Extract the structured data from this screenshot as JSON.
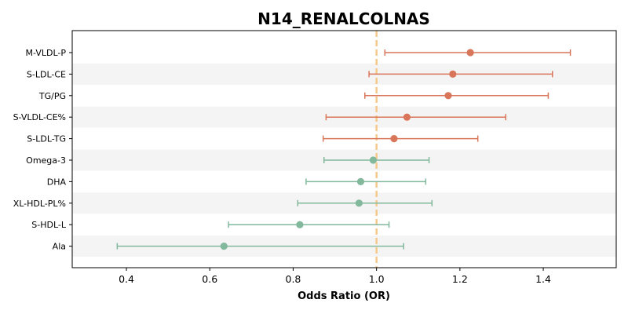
{
  "chart_data": {
    "type": "forest",
    "title": "N14_RENALCOLNAS",
    "xlabel": "Odds Ratio (OR)",
    "ylabel": "",
    "xlim": [
      0.27,
      1.575
    ],
    "xticks": [
      0.4,
      0.6,
      0.8,
      1.0,
      1.2,
      1.4
    ],
    "reference_line": 1.0,
    "colors": {
      "above": "#d9765a",
      "below": "#82b89c",
      "reference": "#f5c98a",
      "band": "#f4f4f4"
    },
    "items": [
      {
        "label": "M-VLDL-P",
        "or": 1.225,
        "lower": 1.02,
        "upper": 1.465
      },
      {
        "label": "S-LDL-CE",
        "or": 1.183,
        "lower": 0.982,
        "upper": 1.422
      },
      {
        "label": "TG/PG",
        "or": 1.172,
        "lower": 0.972,
        "upper": 1.412
      },
      {
        "label": "S-VLDL-CE%",
        "or": 1.073,
        "lower": 0.879,
        "upper": 1.31
      },
      {
        "label": "S-LDL-TG",
        "or": 1.042,
        "lower": 0.872,
        "upper": 1.243
      },
      {
        "label": "Omega-3",
        "or": 0.992,
        "lower": 0.874,
        "upper": 1.126
      },
      {
        "label": "DHA",
        "or": 0.962,
        "lower": 0.831,
        "upper": 1.118
      },
      {
        "label": "XL-HDL-PL%",
        "or": 0.958,
        "lower": 0.811,
        "upper": 1.133
      },
      {
        "label": "S-HDL-L",
        "or": 0.816,
        "lower": 0.645,
        "upper": 1.03
      },
      {
        "label": "Ala",
        "or": 0.634,
        "lower": 0.378,
        "upper": 1.065
      }
    ]
  }
}
